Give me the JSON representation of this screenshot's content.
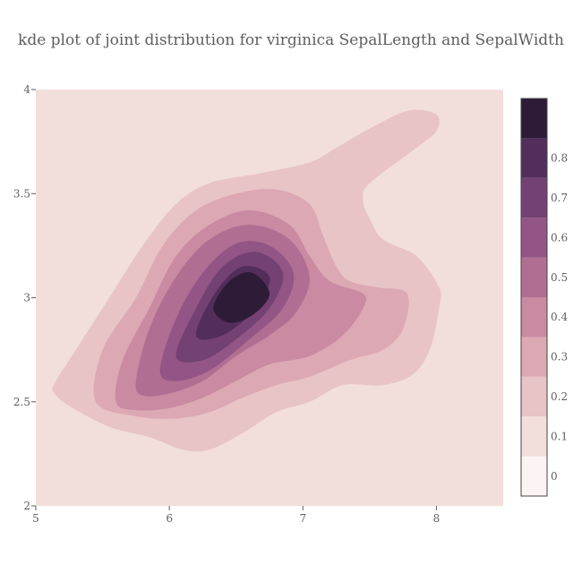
{
  "chart_data": {
    "type": "contour",
    "title": "kde plot of joint distribution for virginica SepalLength and SepalWidth",
    "xlabel": "",
    "ylabel": "",
    "xlim": [
      5,
      8.5
    ],
    "ylim": [
      2,
      4
    ],
    "x_ticks": [
      5,
      6,
      7,
      8
    ],
    "y_ticks": [
      2,
      2.5,
      3,
      3.5,
      4
    ],
    "x_tick_labels": [
      "5",
      "6",
      "7",
      "8"
    ],
    "y_tick_labels": [
      "2",
      "2.5",
      "3",
      "3.5",
      "4"
    ],
    "levels": [
      0,
      0.1,
      0.2,
      0.3,
      0.4,
      0.5,
      0.6,
      0.7,
      0.8
    ],
    "colorbar_tick_labels": [
      "0",
      "0.1",
      "0.2",
      "0.3",
      "0.4",
      "0.5",
      "0.6",
      "0.7",
      "0.8"
    ],
    "colorbar_colors": [
      "#fbf4f2",
      "#f2dfdc",
      "#e8c4c6",
      "#dca8b3",
      "#c98aa2",
      "#b06e92",
      "#935585",
      "#734172",
      "#532e5a",
      "#2e1b38"
    ],
    "peak": {
      "x": 6.55,
      "y": 3.0,
      "density": 0.86
    },
    "grid": false,
    "contours": [
      {
        "level": 0.1,
        "points": [
          [
            5.15,
            2.6
          ],
          [
            5.3,
            2.75
          ],
          [
            5.55,
            3.0
          ],
          [
            5.8,
            3.25
          ],
          [
            6.05,
            3.45
          ],
          [
            6.3,
            3.55
          ],
          [
            6.7,
            3.6
          ],
          [
            7.05,
            3.65
          ],
          [
            7.25,
            3.72
          ],
          [
            7.55,
            3.83
          ],
          [
            7.8,
            3.9
          ],
          [
            8.0,
            3.88
          ],
          [
            8.0,
            3.8
          ],
          [
            7.85,
            3.72
          ],
          [
            7.5,
            3.55
          ],
          [
            7.45,
            3.47
          ],
          [
            7.5,
            3.38
          ],
          [
            7.6,
            3.28
          ],
          [
            7.85,
            3.2
          ],
          [
            8.02,
            3.05
          ],
          [
            8.02,
            2.95
          ],
          [
            7.95,
            2.75
          ],
          [
            7.82,
            2.63
          ],
          [
            7.6,
            2.58
          ],
          [
            7.3,
            2.58
          ],
          [
            7.05,
            2.5
          ],
          [
            6.8,
            2.45
          ],
          [
            6.55,
            2.35
          ],
          [
            6.3,
            2.27
          ],
          [
            6.1,
            2.27
          ],
          [
            5.85,
            2.33
          ],
          [
            5.55,
            2.38
          ],
          [
            5.25,
            2.48
          ],
          [
            5.13,
            2.55
          ]
        ]
      },
      {
        "level": 0.2,
        "points": [
          [
            5.45,
            2.5
          ],
          [
            5.5,
            2.75
          ],
          [
            5.75,
            3.0
          ],
          [
            5.95,
            3.25
          ],
          [
            6.2,
            3.42
          ],
          [
            6.5,
            3.5
          ],
          [
            6.8,
            3.52
          ],
          [
            7.05,
            3.45
          ],
          [
            7.15,
            3.3
          ],
          [
            7.25,
            3.15
          ],
          [
            7.35,
            3.08
          ],
          [
            7.55,
            3.05
          ],
          [
            7.78,
            3.02
          ],
          [
            7.75,
            2.85
          ],
          [
            7.6,
            2.75
          ],
          [
            7.35,
            2.7
          ],
          [
            7.05,
            2.62
          ],
          [
            6.8,
            2.58
          ],
          [
            6.55,
            2.52
          ],
          [
            6.3,
            2.45
          ],
          [
            6.05,
            2.42
          ],
          [
            5.75,
            2.43
          ]
        ]
      },
      {
        "level": 0.3,
        "points": [
          [
            5.6,
            2.5
          ],
          [
            5.65,
            2.7
          ],
          [
            5.85,
            2.95
          ],
          [
            6.05,
            3.2
          ],
          [
            6.3,
            3.35
          ],
          [
            6.6,
            3.42
          ],
          [
            6.9,
            3.35
          ],
          [
            7.05,
            3.2
          ],
          [
            7.2,
            3.08
          ],
          [
            7.45,
            3.02
          ],
          [
            7.45,
            2.95
          ],
          [
            7.3,
            2.82
          ],
          [
            7.05,
            2.72
          ],
          [
            6.75,
            2.68
          ],
          [
            6.5,
            2.6
          ],
          [
            6.25,
            2.52
          ],
          [
            6.0,
            2.47
          ],
          [
            5.75,
            2.46
          ]
        ]
      },
      {
        "level": 0.4,
        "points": [
          [
            5.75,
            2.6
          ],
          [
            5.85,
            2.85
          ],
          [
            6.05,
            3.1
          ],
          [
            6.3,
            3.28
          ],
          [
            6.6,
            3.35
          ],
          [
            6.9,
            3.28
          ],
          [
            7.05,
            3.1
          ],
          [
            6.95,
            2.93
          ],
          [
            6.75,
            2.82
          ],
          [
            6.5,
            2.72
          ],
          [
            6.25,
            2.6
          ],
          [
            6.0,
            2.54
          ],
          [
            5.8,
            2.53
          ]
        ]
      },
      {
        "level": 0.5,
        "points": [
          [
            5.93,
            2.65
          ],
          [
            6.05,
            2.9
          ],
          [
            6.25,
            3.12
          ],
          [
            6.5,
            3.26
          ],
          [
            6.75,
            3.25
          ],
          [
            6.93,
            3.12
          ],
          [
            6.85,
            2.95
          ],
          [
            6.6,
            2.8
          ],
          [
            6.3,
            2.65
          ],
          [
            6.05,
            2.6
          ]
        ]
      },
      {
        "level": 0.6,
        "points": [
          [
            6.05,
            2.72
          ],
          [
            6.2,
            2.95
          ],
          [
            6.4,
            3.15
          ],
          [
            6.65,
            3.22
          ],
          [
            6.85,
            3.12
          ],
          [
            6.75,
            2.95
          ],
          [
            6.5,
            2.8
          ],
          [
            6.25,
            2.7
          ]
        ]
      },
      {
        "level": 0.7,
        "points": [
          [
            6.2,
            2.82
          ],
          [
            6.35,
            3.03
          ],
          [
            6.55,
            3.15
          ],
          [
            6.75,
            3.1
          ],
          [
            6.65,
            2.95
          ],
          [
            6.4,
            2.82
          ]
        ]
      },
      {
        "level": 0.8,
        "points": [
          [
            6.33,
            2.95
          ],
          [
            6.45,
            3.08
          ],
          [
            6.62,
            3.12
          ],
          [
            6.75,
            3.02
          ],
          [
            6.63,
            2.92
          ],
          [
            6.45,
            2.88
          ]
        ]
      }
    ]
  }
}
